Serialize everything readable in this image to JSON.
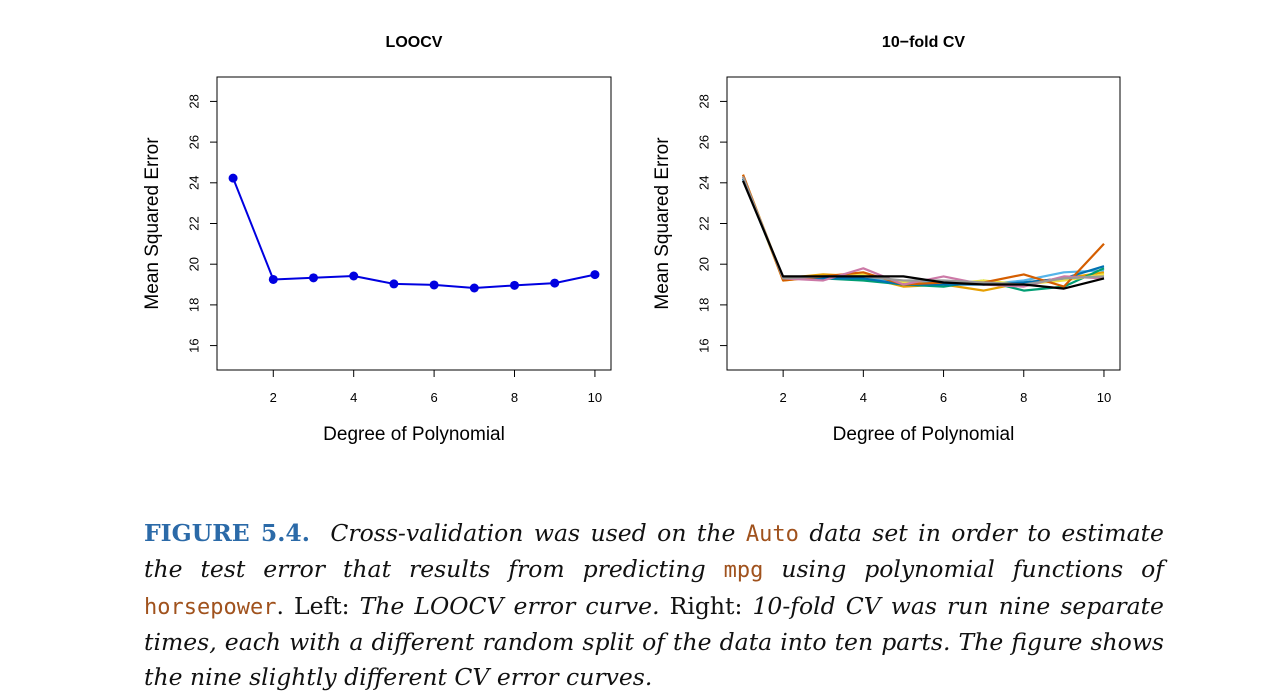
{
  "chart_data": [
    {
      "type": "line",
      "title": "LOOCV",
      "xlabel": "Degree of Polynomial",
      "ylabel": "Mean Squared Error",
      "xlim": [
        0.6,
        10.4
      ],
      "ylim": [
        14.8,
        29.2
      ],
      "xticks": [
        "2",
        "4",
        "6",
        "8",
        "10"
      ],
      "yticks": [
        "16",
        "18",
        "20",
        "22",
        "24",
        "26",
        "28"
      ],
      "x": [
        1,
        2,
        3,
        4,
        5,
        6,
        7,
        8,
        9,
        10
      ],
      "series": [
        {
          "color": "#0000e0",
          "markers": true,
          "values": [
            24.23,
            19.25,
            19.33,
            19.42,
            19.03,
            18.98,
            18.83,
            18.96,
            19.07,
            19.49
          ]
        }
      ]
    },
    {
      "type": "line",
      "title": "10−fold CV",
      "xlabel": "Degree of Polynomial",
      "ylabel": "Mean Squared Error",
      "xlim": [
        0.6,
        10.4
      ],
      "ylim": [
        14.8,
        29.2
      ],
      "xticks": [
        "2",
        "4",
        "6",
        "8",
        "10"
      ],
      "yticks": [
        "16",
        "18",
        "20",
        "22",
        "24",
        "26",
        "28"
      ],
      "x": [
        1,
        2,
        3,
        4,
        5,
        6,
        7,
        8,
        9,
        10
      ],
      "series": [
        {
          "color": "#e69f00",
          "values": [
            24.4,
            19.3,
            19.5,
            19.4,
            18.9,
            19.0,
            18.7,
            19.1,
            19.3,
            19.6
          ]
        },
        {
          "color": "#56b4e9",
          "values": [
            24.3,
            19.3,
            19.3,
            19.3,
            19.1,
            19.1,
            19.0,
            19.2,
            19.6,
            19.7
          ]
        },
        {
          "color": "#009e73",
          "values": [
            24.2,
            19.3,
            19.3,
            19.2,
            19.0,
            18.9,
            19.2,
            18.7,
            18.9,
            19.8
          ]
        },
        {
          "color": "#f0e442",
          "values": [
            24.3,
            19.2,
            19.4,
            19.5,
            19.1,
            19.0,
            19.2,
            19.0,
            19.2,
            19.5
          ]
        },
        {
          "color": "#0072b2",
          "values": [
            24.2,
            19.3,
            19.3,
            19.3,
            19.0,
            19.0,
            19.0,
            19.1,
            19.3,
            19.9
          ]
        },
        {
          "color": "#d55e00",
          "values": [
            24.4,
            19.2,
            19.4,
            19.6,
            19.0,
            19.1,
            19.1,
            19.5,
            18.9,
            21.0
          ]
        },
        {
          "color": "#cc79a7",
          "values": [
            24.3,
            19.3,
            19.2,
            19.8,
            19.0,
            19.4,
            19.0,
            18.9,
            19.4,
            19.3
          ]
        },
        {
          "color": "#999999",
          "values": [
            24.3,
            19.3,
            19.4,
            19.4,
            19.2,
            19.2,
            19.1,
            19.0,
            19.3,
            19.4
          ]
        },
        {
          "color": "#000000",
          "values": [
            24.1,
            19.4,
            19.4,
            19.4,
            19.4,
            19.1,
            19.0,
            19.0,
            18.8,
            19.3
          ]
        }
      ]
    }
  ],
  "caption": {
    "label": "FIGURE 5.4.",
    "p1": "Cross-validation was used on the",
    "code1": "Auto",
    "p2": "data set in order to estimate the test error that results from predicting",
    "code2": "mpg",
    "p3": "using polynomial functions of",
    "code3": "horsepower",
    "p4": ". Left:",
    "p5": "The LOOCV error curve.",
    "p6": "Right:",
    "p7": "10-fold CV was run nine separate times, each with a different random split of the data into ten parts. The figure shows the nine slightly different CV error curves."
  }
}
